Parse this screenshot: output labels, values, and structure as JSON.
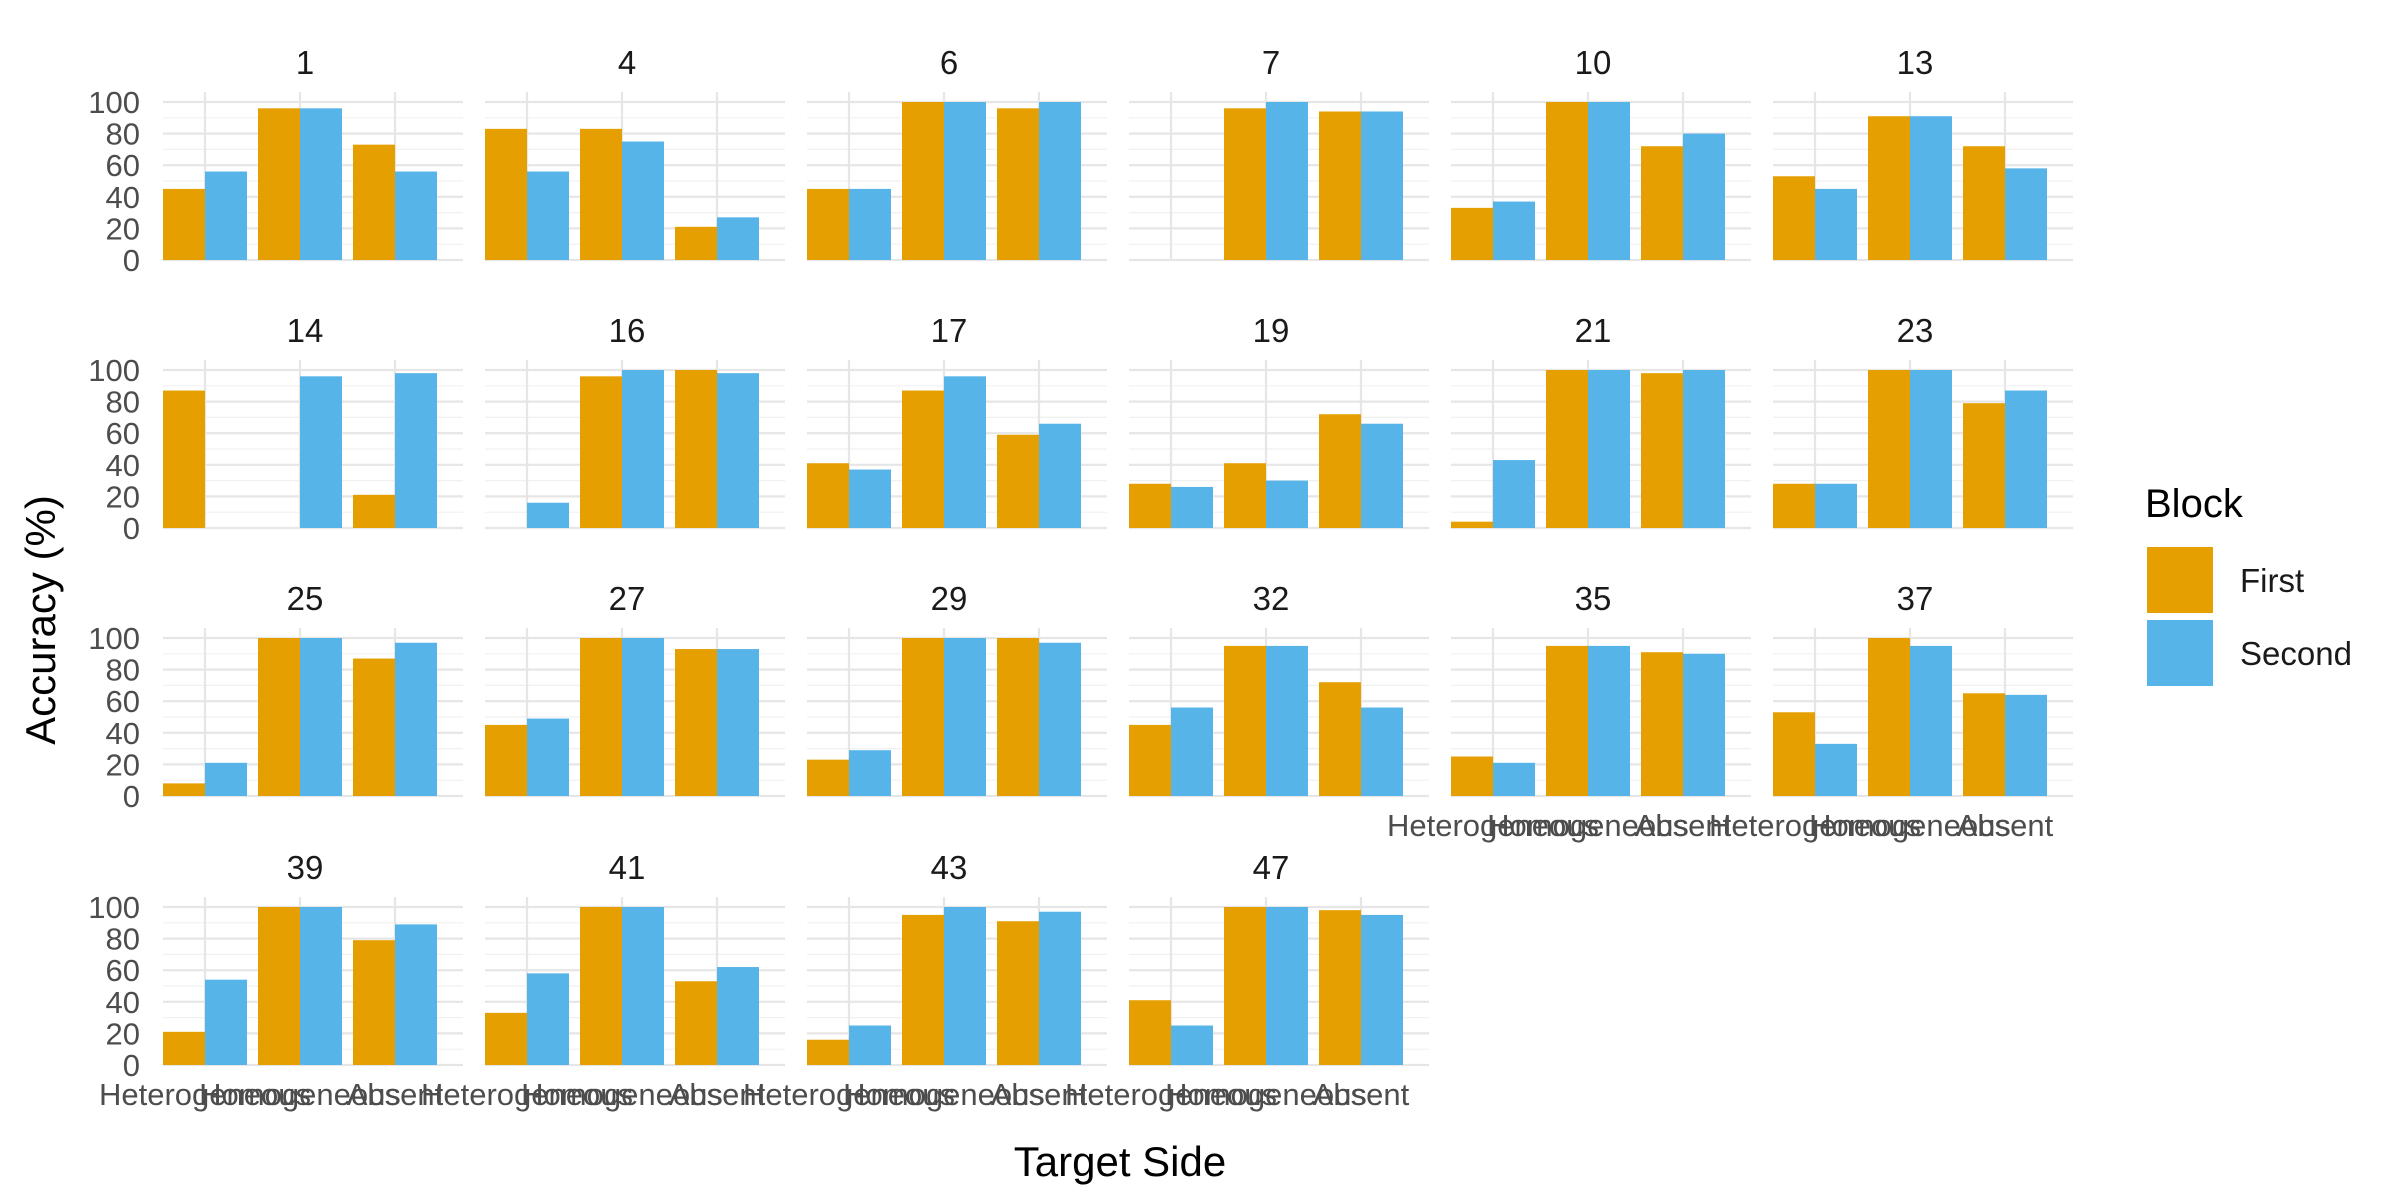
{
  "chart_data": {
    "type": "bar",
    "xlabel": "Target Side",
    "ylabel": "Accuracy (%)",
    "ylim": [
      0,
      100
    ],
    "yticks": [
      "0",
      "20",
      "40",
      "60",
      "80",
      "100"
    ],
    "categories": [
      "Heterogeneous",
      "Homogeneous",
      "Absent"
    ],
    "legend": {
      "title": "Block",
      "position": "right",
      "items": [
        {
          "name": "First",
          "color": "#E69F00"
        },
        {
          "name": "Second",
          "color": "#56B4E9"
        }
      ]
    },
    "grid": true,
    "panels": [
      {
        "label": "1",
        "First": [
          45,
          96,
          73
        ],
        "Second": [
          56,
          96,
          56
        ]
      },
      {
        "label": "4",
        "First": [
          83,
          83,
          21
        ],
        "Second": [
          56,
          75,
          27
        ]
      },
      {
        "label": "6",
        "First": [
          45,
          100,
          96
        ],
        "Second": [
          45,
          100,
          100
        ]
      },
      {
        "label": "7",
        "First": [
          0,
          96,
          94
        ],
        "Second": [
          0,
          100,
          94
        ]
      },
      {
        "label": "10",
        "First": [
          33,
          100,
          72
        ],
        "Second": [
          37,
          100,
          80
        ]
      },
      {
        "label": "13",
        "First": [
          53,
          91,
          72
        ],
        "Second": [
          45,
          91,
          58
        ]
      },
      {
        "label": "14",
        "First": [
          87,
          0,
          21
        ],
        "Second": [
          0,
          96,
          98
        ]
      },
      {
        "label": "16",
        "First": [
          0,
          96,
          100
        ],
        "Second": [
          16,
          100,
          98
        ]
      },
      {
        "label": "17",
        "First": [
          41,
          87,
          59
        ],
        "Second": [
          37,
          96,
          66
        ]
      },
      {
        "label": "19",
        "First": [
          28,
          41,
          72
        ],
        "Second": [
          26,
          30,
          66
        ]
      },
      {
        "label": "21",
        "First": [
          4,
          100,
          98
        ],
        "Second": [
          43,
          100,
          100
        ]
      },
      {
        "label": "23",
        "First": [
          28,
          100,
          79
        ],
        "Second": [
          28,
          100,
          87
        ]
      },
      {
        "label": "25",
        "First": [
          8,
          100,
          87
        ],
        "Second": [
          21,
          100,
          97
        ]
      },
      {
        "label": "27",
        "First": [
          45,
          100,
          93
        ],
        "Second": [
          49,
          100,
          93
        ]
      },
      {
        "label": "29",
        "First": [
          23,
          100,
          100
        ],
        "Second": [
          29,
          100,
          97
        ]
      },
      {
        "label": "32",
        "First": [
          45,
          95,
          72
        ],
        "Second": [
          56,
          95,
          56
        ]
      },
      {
        "label": "35",
        "First": [
          25,
          95,
          91
        ],
        "Second": [
          21,
          95,
          90
        ]
      },
      {
        "label": "37",
        "First": [
          53,
          100,
          65
        ],
        "Second": [
          33,
          95,
          64
        ]
      },
      {
        "label": "39",
        "First": [
          21,
          100,
          79
        ],
        "Second": [
          54,
          100,
          89
        ]
      },
      {
        "label": "41",
        "First": [
          33,
          100,
          53
        ],
        "Second": [
          58,
          100,
          62
        ]
      },
      {
        "label": "43",
        "First": [
          16,
          95,
          91
        ],
        "Second": [
          25,
          100,
          97
        ]
      },
      {
        "label": "47",
        "First": [
          41,
          100,
          98
        ],
        "Second": [
          25,
          100,
          95
        ]
      }
    ]
  }
}
